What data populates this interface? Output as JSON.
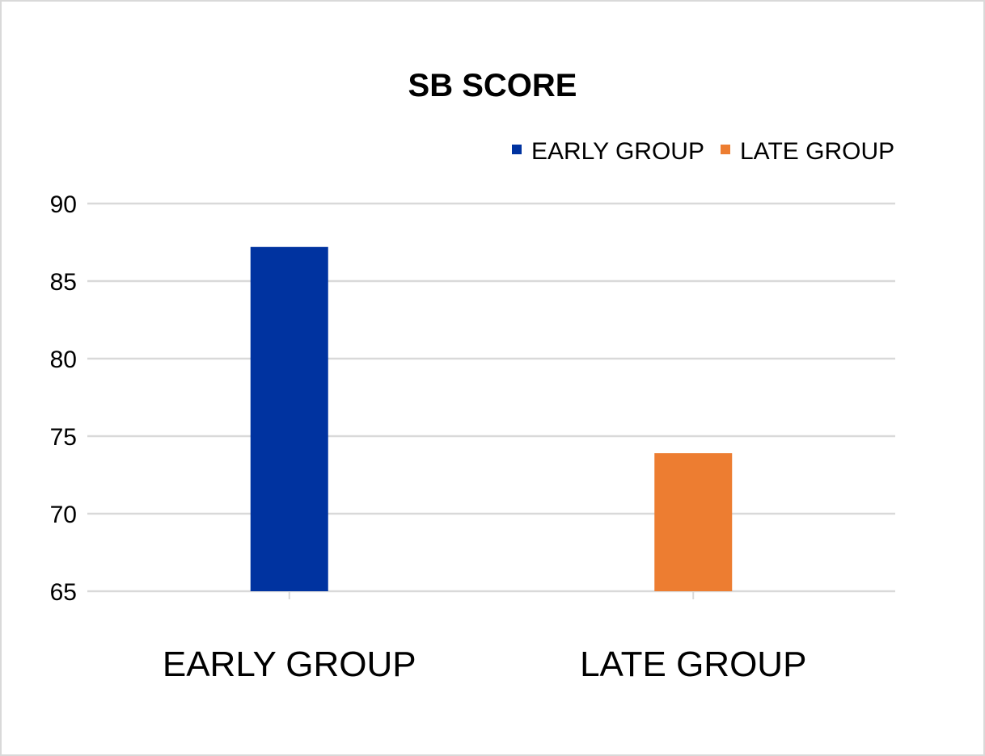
{
  "chart_data": {
    "type": "bar",
    "title": "SB SCORE",
    "categories": [
      "EARLY GROUP",
      "LATE GROUP"
    ],
    "values": [
      87.2,
      73.9
    ],
    "colors": [
      "#0033A0",
      "#ED7D31"
    ],
    "legend": {
      "position": "top-right",
      "entries": [
        {
          "label": "EARLY GROUP",
          "color": "#0033A0"
        },
        {
          "label": "LATE GROUP",
          "color": "#ED7D31"
        }
      ]
    },
    "ylim": [
      65,
      90
    ],
    "yticks": [
      90,
      85,
      80,
      75,
      70,
      65
    ],
    "grid": true,
    "xlabel": "",
    "ylabel": ""
  }
}
